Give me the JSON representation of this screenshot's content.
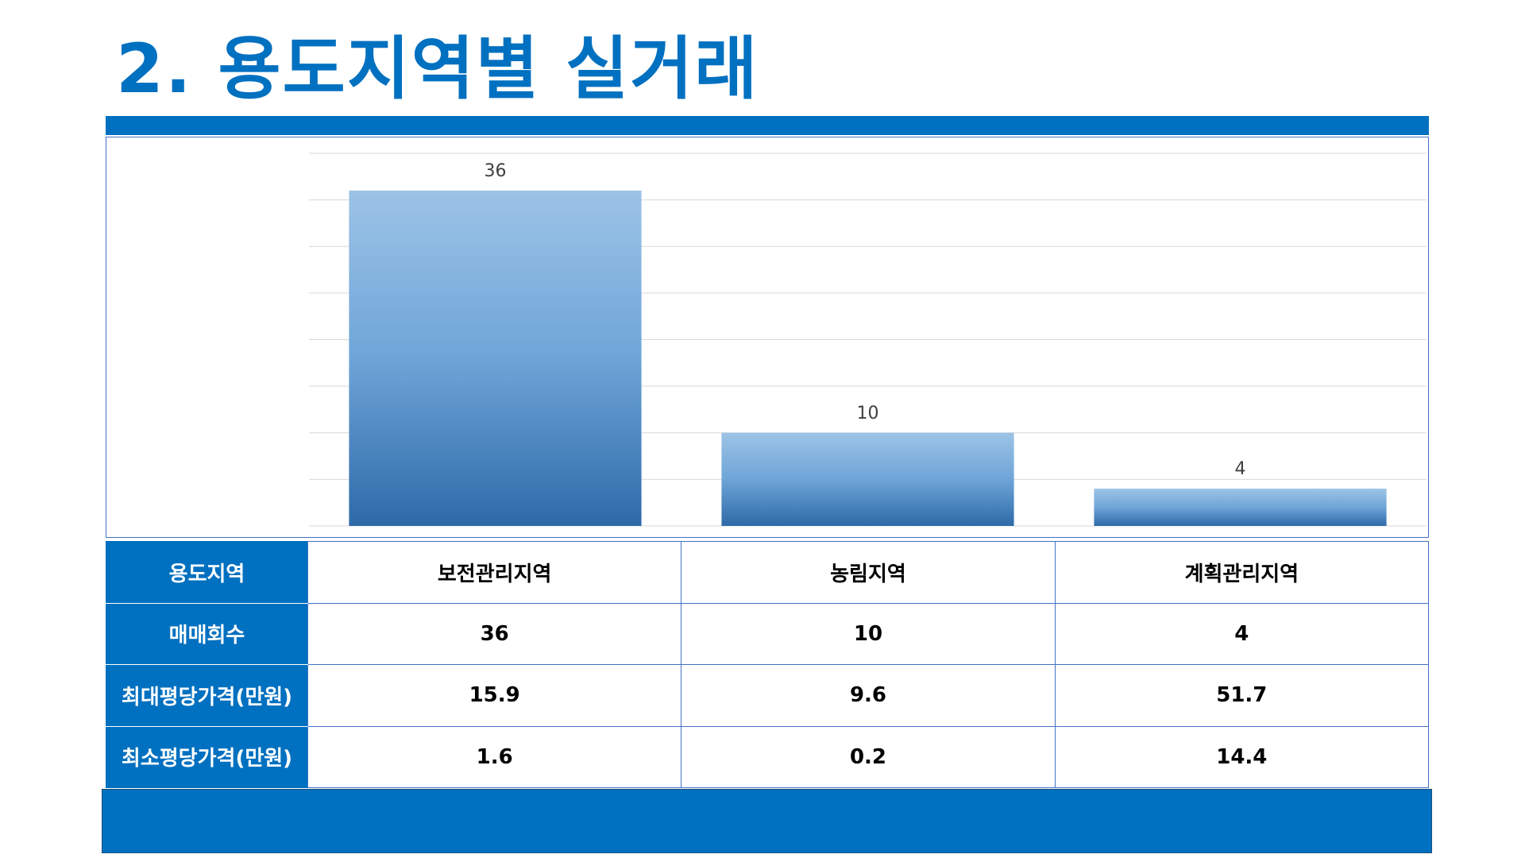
{
  "title": "2. 용도지역별 실거래",
  "colors": {
    "accent": "#0070c0",
    "bar_top": "#9dc3e6",
    "bar_bottom": "#2e6aa8",
    "grid": "#d9d9d9"
  },
  "chart_data": {
    "type": "bar",
    "categories": [
      "보전관리지역",
      "농림지역",
      "계획관리지역"
    ],
    "values": [
      36,
      10,
      4
    ],
    "data_labels": [
      "36",
      "10",
      "4"
    ],
    "ylim": [
      0,
      40
    ],
    "grid": true,
    "legend": "none",
    "xlabel": "",
    "ylabel": ""
  },
  "table": {
    "rows": [
      {
        "header": "용도지역",
        "cells": [
          "보전관리지역",
          "농림지역",
          "계획관리지역"
        ]
      },
      {
        "header": "매매회수",
        "cells": [
          "36",
          "10",
          "4"
        ]
      },
      {
        "header": "최대평당가격(만원)",
        "cells": [
          "15.9",
          "9.6",
          "51.7"
        ]
      },
      {
        "header": "최소평당가격(만원)",
        "cells": [
          "1.6",
          "0.2",
          "14.4"
        ]
      }
    ]
  }
}
